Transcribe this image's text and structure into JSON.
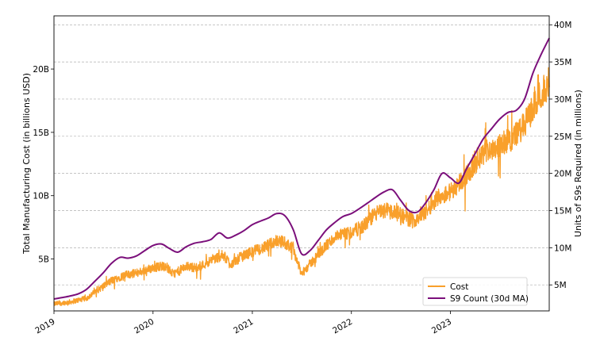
{
  "chart_data": {
    "type": "line",
    "title": "",
    "xlabel": "",
    "ylabel_left": "Total Manufacturing Cost (in billions USD)",
    "ylabel_right": "Units of S9s Required (in millions)",
    "x_range": [
      "2019-01-01",
      "2023-12-31"
    ],
    "x_tick_labels": [
      "2019",
      "2020",
      "2021",
      "2022",
      "2023"
    ],
    "ylim_left": [
      0.9,
      24.2
    ],
    "y_ticks_left": [
      {
        "value": 5,
        "label": "5B"
      },
      {
        "value": 10,
        "label": "10B"
      },
      {
        "value": 15,
        "label": "15B"
      },
      {
        "value": 20,
        "label": "20B"
      }
    ],
    "ylim_right": [
      1.5,
      41.2
    ],
    "y_ticks_right": [
      {
        "value": 5,
        "label": "5M"
      },
      {
        "value": 10,
        "label": "10M"
      },
      {
        "value": 15,
        "label": "15M"
      },
      {
        "value": 20,
        "label": "20M"
      },
      {
        "value": 25,
        "label": "25M"
      },
      {
        "value": 30,
        "label": "30M"
      },
      {
        "value": 35,
        "label": "35M"
      },
      {
        "value": 40,
        "label": "40M"
      }
    ],
    "grid": "horizontal dashed at right-axis ticks",
    "legend_position": "lower-right",
    "series": [
      {
        "name": "Cost",
        "axis": "left",
        "color": "#f9a02b",
        "style": "noisy daily line",
        "points": [
          [
            "2019-01-01",
            1.45
          ],
          [
            "2019-03-01",
            1.6
          ],
          [
            "2019-05-01",
            1.9
          ],
          [
            "2019-06-15",
            2.6
          ],
          [
            "2019-08-01",
            3.3
          ],
          [
            "2019-09-15",
            3.7
          ],
          [
            "2019-11-01",
            3.9
          ],
          [
            "2020-01-01",
            4.3
          ],
          [
            "2020-02-15",
            4.5
          ],
          [
            "2020-03-15",
            3.8
          ],
          [
            "2020-05-01",
            4.4
          ],
          [
            "2020-06-15",
            4.3
          ],
          [
            "2020-08-01",
            4.9
          ],
          [
            "2020-09-15",
            5.3
          ],
          [
            "2020-10-15",
            4.6
          ],
          [
            "2020-11-15",
            5.1
          ],
          [
            "2021-01-01",
            5.6
          ],
          [
            "2021-02-15",
            5.9
          ],
          [
            "2021-04-01",
            6.5
          ],
          [
            "2021-05-01",
            6.3
          ],
          [
            "2021-06-01",
            5.8
          ],
          [
            "2021-07-01",
            3.8
          ],
          [
            "2021-08-01",
            4.6
          ],
          [
            "2021-09-15",
            5.7
          ],
          [
            "2021-11-01",
            6.7
          ],
          [
            "2022-01-01",
            7.1
          ],
          [
            "2022-02-15",
            7.6
          ],
          [
            "2022-04-01",
            8.6
          ],
          [
            "2022-05-15",
            8.9
          ],
          [
            "2022-07-01",
            8.5
          ],
          [
            "2022-08-15",
            8.0
          ],
          [
            "2022-10-01",
            8.7
          ],
          [
            "2022-11-15",
            9.9
          ],
          [
            "2023-01-01",
            10.3
          ],
          [
            "2023-02-15",
            11.3
          ],
          [
            "2023-04-01",
            12.4
          ],
          [
            "2023-05-15",
            13.6
          ],
          [
            "2023-07-01",
            14.0
          ],
          [
            "2023-08-15",
            14.5
          ],
          [
            "2023-10-01",
            15.6
          ],
          [
            "2023-11-15",
            17.5
          ],
          [
            "2023-12-31",
            19.0
          ]
        ]
      },
      {
        "name": "S9 Count (30d MA)",
        "axis": "right",
        "color": "#7b0f7b",
        "style": "smooth line",
        "points": [
          [
            "2019-01-01",
            3.1
          ],
          [
            "2019-02-01",
            3.3
          ],
          [
            "2019-03-01",
            3.5
          ],
          [
            "2019-04-01",
            3.8
          ],
          [
            "2019-05-01",
            4.4
          ],
          [
            "2019-06-01",
            5.5
          ],
          [
            "2019-07-01",
            6.6
          ],
          [
            "2019-08-01",
            7.9
          ],
          [
            "2019-09-01",
            8.7
          ],
          [
            "2019-10-01",
            8.6
          ],
          [
            "2019-11-01",
            8.9
          ],
          [
            "2019-12-01",
            9.6
          ],
          [
            "2020-01-01",
            10.3
          ],
          [
            "2020-02-01",
            10.5
          ],
          [
            "2020-03-01",
            9.9
          ],
          [
            "2020-04-01",
            9.4
          ],
          [
            "2020-05-01",
            10.1
          ],
          [
            "2020-06-01",
            10.6
          ],
          [
            "2020-07-01",
            10.8
          ],
          [
            "2020-08-01",
            11.1
          ],
          [
            "2020-09-01",
            12.0
          ],
          [
            "2020-10-01",
            11.3
          ],
          [
            "2020-11-01",
            11.7
          ],
          [
            "2020-12-01",
            12.3
          ],
          [
            "2021-01-01",
            13.1
          ],
          [
            "2021-02-01",
            13.6
          ],
          [
            "2021-03-01",
            14.0
          ],
          [
            "2021-04-01",
            14.6
          ],
          [
            "2021-05-01",
            14.3
          ],
          [
            "2021-06-01",
            12.4
          ],
          [
            "2021-07-01",
            9.2
          ],
          [
            "2021-08-01",
            9.6
          ],
          [
            "2021-09-01",
            11.0
          ],
          [
            "2021-10-01",
            12.4
          ],
          [
            "2021-11-01",
            13.4
          ],
          [
            "2021-12-01",
            14.2
          ],
          [
            "2022-01-01",
            14.6
          ],
          [
            "2022-02-01",
            15.3
          ],
          [
            "2022-03-01",
            16.0
          ],
          [
            "2022-04-01",
            16.8
          ],
          [
            "2022-05-01",
            17.5
          ],
          [
            "2022-06-01",
            17.8
          ],
          [
            "2022-07-01",
            16.4
          ],
          [
            "2022-08-01",
            15.0
          ],
          [
            "2022-09-01",
            14.8
          ],
          [
            "2022-10-01",
            16.0
          ],
          [
            "2022-11-01",
            17.8
          ],
          [
            "2022-12-01",
            20.0
          ],
          [
            "2023-01-01",
            19.4
          ],
          [
            "2023-02-01",
            18.7
          ],
          [
            "2023-03-01",
            20.6
          ],
          [
            "2023-04-01",
            22.6
          ],
          [
            "2023-05-01",
            24.6
          ],
          [
            "2023-06-01",
            26.0
          ],
          [
            "2023-07-01",
            27.3
          ],
          [
            "2023-08-01",
            28.2
          ],
          [
            "2023-09-01",
            28.5
          ],
          [
            "2023-10-01",
            30.0
          ],
          [
            "2023-11-01",
            33.5
          ],
          [
            "2023-12-01",
            36.0
          ],
          [
            "2023-12-31",
            38.2
          ]
        ]
      }
    ]
  }
}
